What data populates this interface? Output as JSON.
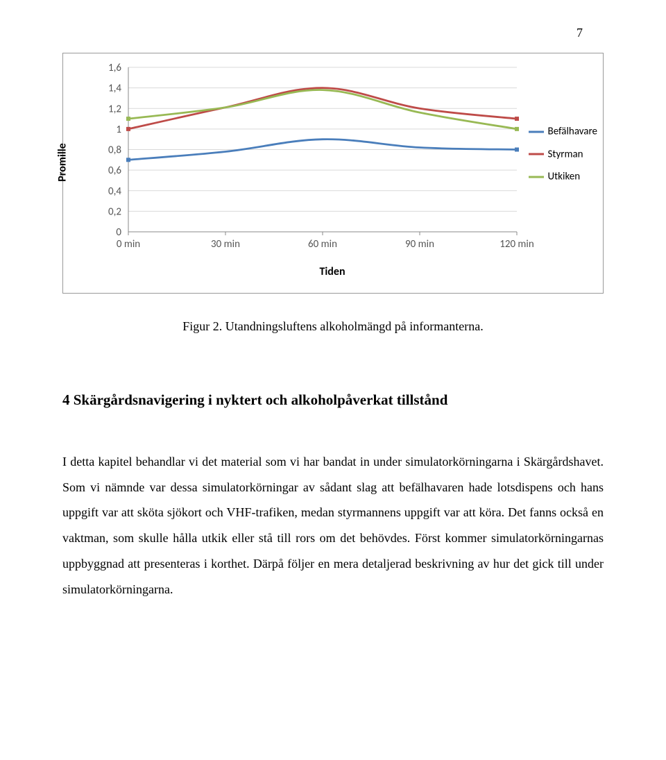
{
  "page_number": "7",
  "chart": {
    "type": "line",
    "y_label": "Promille",
    "x_label": "Tiden",
    "ylim": [
      0,
      1.6
    ],
    "ytick_step": 0.2,
    "yticks": [
      "0",
      "0,2",
      "0,4",
      "0,6",
      "0,8",
      "1",
      "1,2",
      "1,4",
      "1,6"
    ],
    "categories": [
      "0 min",
      "30 min",
      "60 min",
      "90 min",
      "120 min"
    ],
    "grid_color": "#d9d9d9",
    "axis_color": "#888888",
    "tick_font_family": "Calibri, Arial, sans-serif",
    "tick_fontsize": 15,
    "label_fontsize": 16,
    "line_width": 2.8,
    "marker_style": "square",
    "marker_size": 6,
    "series": [
      {
        "name": "Befälhavare",
        "color": "#4a7ebb",
        "values": [
          0.7,
          0.78,
          0.9,
          0.82,
          0.8
        ]
      },
      {
        "name": "Styrman",
        "color": "#be4b48",
        "values": [
          1.0,
          1.21,
          1.4,
          1.2,
          1.1
        ]
      },
      {
        "name": "Utkiken",
        "color": "#98b954",
        "values": [
          1.1,
          1.21,
          1.38,
          1.16,
          1.0
        ]
      }
    ]
  },
  "figure_caption": "Figur 2. Utandningsluftens alkoholmängd på informanterna.",
  "section_title": "4 Skärgårdsnavigering i nyktert och alkoholpåverkat tillstånd",
  "body_text": "I detta kapitel behandlar vi det material som vi har bandat in under simulatorkörningarna i Skärgårdshavet. Som vi nämnde var dessa simulatorkörningar av sådant slag att befälhavaren hade lotsdispens och hans uppgift var att sköta sjökort och VHF-trafiken, medan styrmannens uppgift var att köra. Det fanns också en vaktman, som skulle hålla utkik eller stå till rors om det behövdes. Först kommer simulatorkörningarnas uppbyggnad att presenteras i korthet. Därpå följer en mera detaljerad beskrivning av hur det gick till under simulatorkörningarna."
}
